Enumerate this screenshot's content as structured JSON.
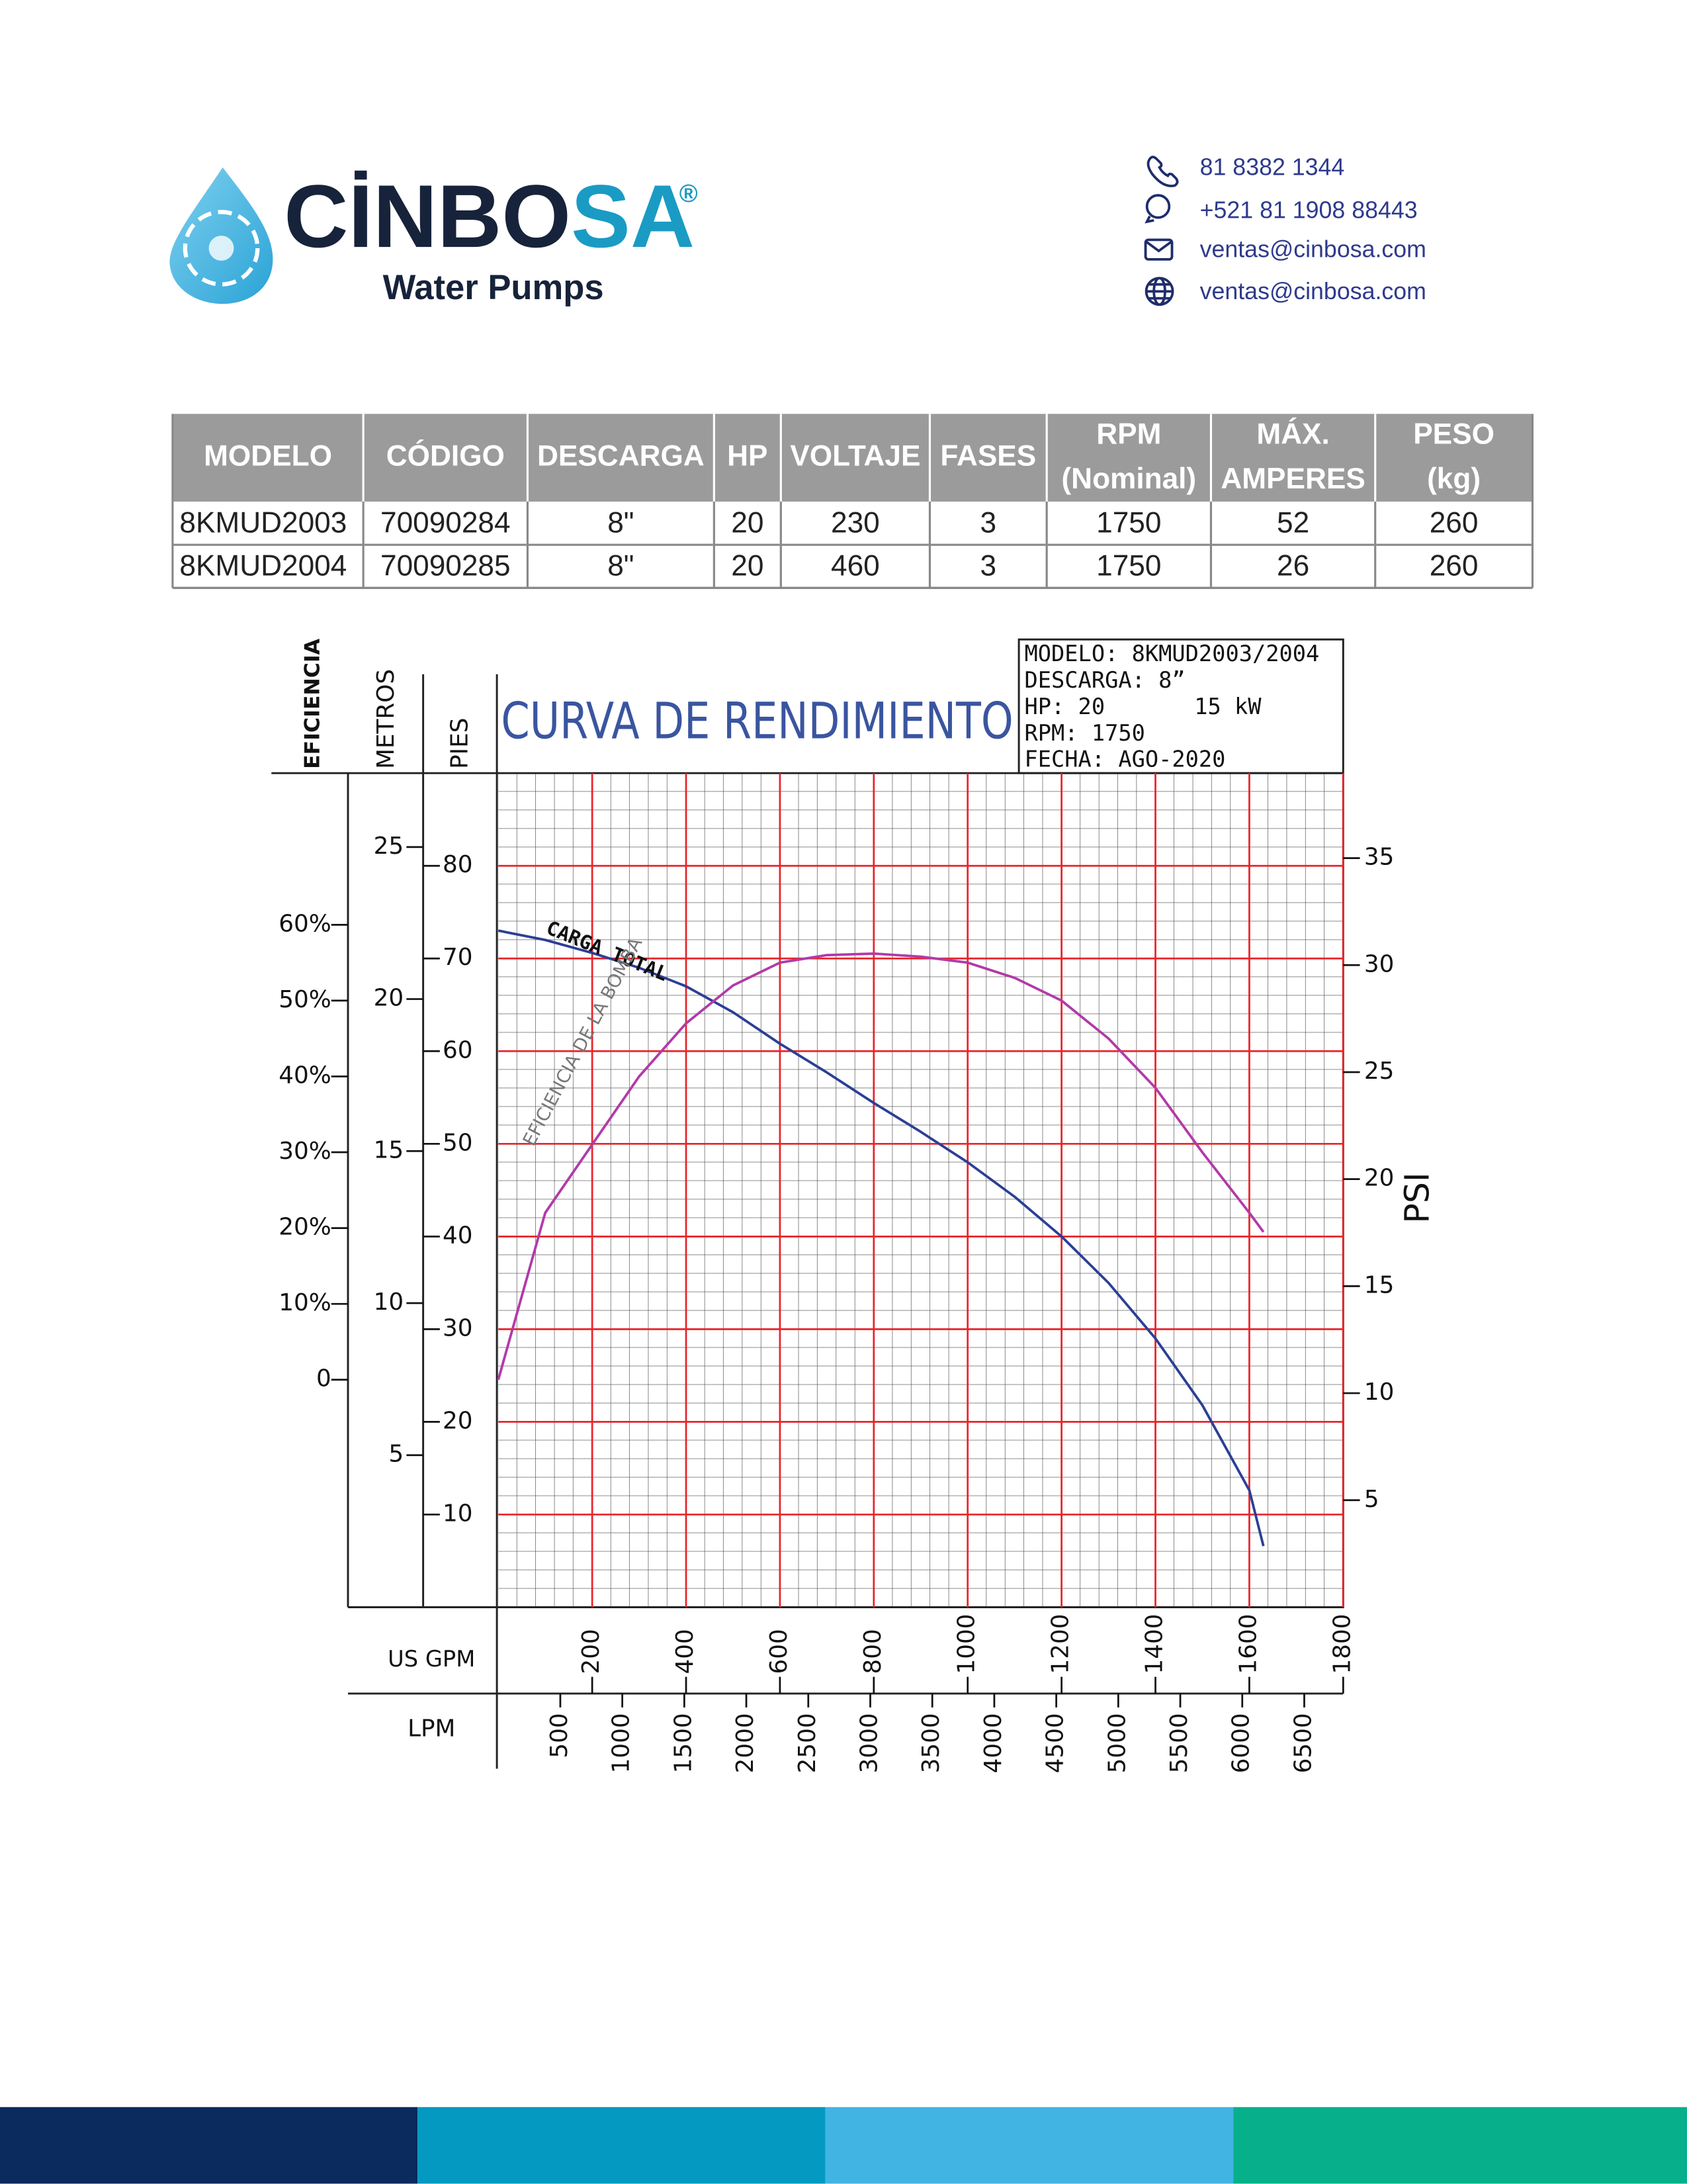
{
  "header": {
    "brand_main": "CİNBO",
    "brand_accent": "SA",
    "registered": "®",
    "subtitle": "Water Pumps",
    "contacts": [
      "81 8382 1344",
      "+521 81 1908 88443",
      "ventas@cinbosa.com",
      "ventas@cinbosa.com"
    ]
  },
  "table": {
    "headers": [
      [
        "MODELO"
      ],
      [
        "CÓDIGO"
      ],
      [
        "DESCARGA"
      ],
      [
        "HP"
      ],
      [
        "VOLTAJE"
      ],
      [
        "FASES"
      ],
      [
        "RPM",
        "(Nominal)"
      ],
      [
        "MÁX.",
        "AMPERES"
      ],
      [
        "PESO",
        "(kg)"
      ]
    ],
    "rows": [
      [
        "8KMUD2003",
        "70090284",
        "8\"",
        "20",
        "230",
        "3",
        "1750",
        "52",
        "260"
      ],
      [
        "8KMUD2004",
        "70090285",
        "8\"",
        "20",
        "460",
        "3",
        "1750",
        "26",
        "260"
      ]
    ]
  },
  "chart_data": {
    "type": "line",
    "title": "CURVA DE RENDIMIENTO",
    "info": [
      "MODELO: 8KMUD2003/2004",
      "DESCARGA: 8”",
      "HP: 20",
      "15 kW",
      "RPM: 1750",
      "FECHA: AGO-2020"
    ],
    "x_label": "US GPM",
    "x2_label": "LPM",
    "y_label": "PIES",
    "y2_label": "EFICIENCIA",
    "y3_label": "METROS",
    "y4_label": "PSI",
    "xlim": [
      0,
      1800
    ],
    "xticks": [
      200,
      400,
      600,
      800,
      1000,
      1200,
      1400,
      1600,
      1800
    ],
    "x2lim": [
      0,
      6814
    ],
    "x2ticks": [
      500,
      1000,
      1500,
      2000,
      2500,
      3000,
      3500,
      4000,
      4500,
      5000,
      5500,
      6000,
      6500
    ],
    "ylim": [
      0,
      90
    ],
    "yticks": [
      10,
      20,
      30,
      40,
      50,
      60,
      70,
      80
    ],
    "y2lim": [
      -30,
      80
    ],
    "y2ticks": [
      0,
      {
        "value": 10,
        "label": "10%"
      },
      {
        "value": 20,
        "label": "20%"
      },
      {
        "value": 30,
        "label": "30%"
      },
      {
        "value": 40,
        "label": "40%"
      },
      {
        "value": 50,
        "label": "50%"
      },
      {
        "value": 60,
        "label": "60%"
      }
    ],
    "y3lim": [
      0,
      27.43
    ],
    "y3ticks": [
      5,
      10,
      15,
      20,
      25
    ],
    "y4lim": [
      0,
      38.97
    ],
    "y4ticks": [
      5,
      10,
      15,
      20,
      25,
      30,
      35
    ],
    "grid": true,
    "x": [
      0,
      100,
      200,
      300,
      400,
      500,
      600,
      700,
      800,
      900,
      1000,
      1100,
      1200,
      1300,
      1400,
      1500,
      1600,
      1630
    ],
    "series": [
      {
        "name": "CARGA TOTAL",
        "color": "#2b3f94",
        "values": [
          73,
          72,
          70.6,
          69,
          67,
          64.2,
          60.8,
          57.7,
          54.4,
          51.3,
          48,
          44.3,
          40,
          35,
          29,
          21.8,
          12.6,
          6.6
        ]
      },
      {
        "name": "EFICIENCIA DE LA BOMBA",
        "color": "#b23aa8",
        "axis": "y2",
        "values": [
          0,
          22,
          31,
          40,
          47,
          52,
          55,
          56,
          56.2,
          55.8,
          55,
          53,
          50,
          45,
          38.5,
          30,
          22,
          19.5
        ]
      }
    ]
  }
}
